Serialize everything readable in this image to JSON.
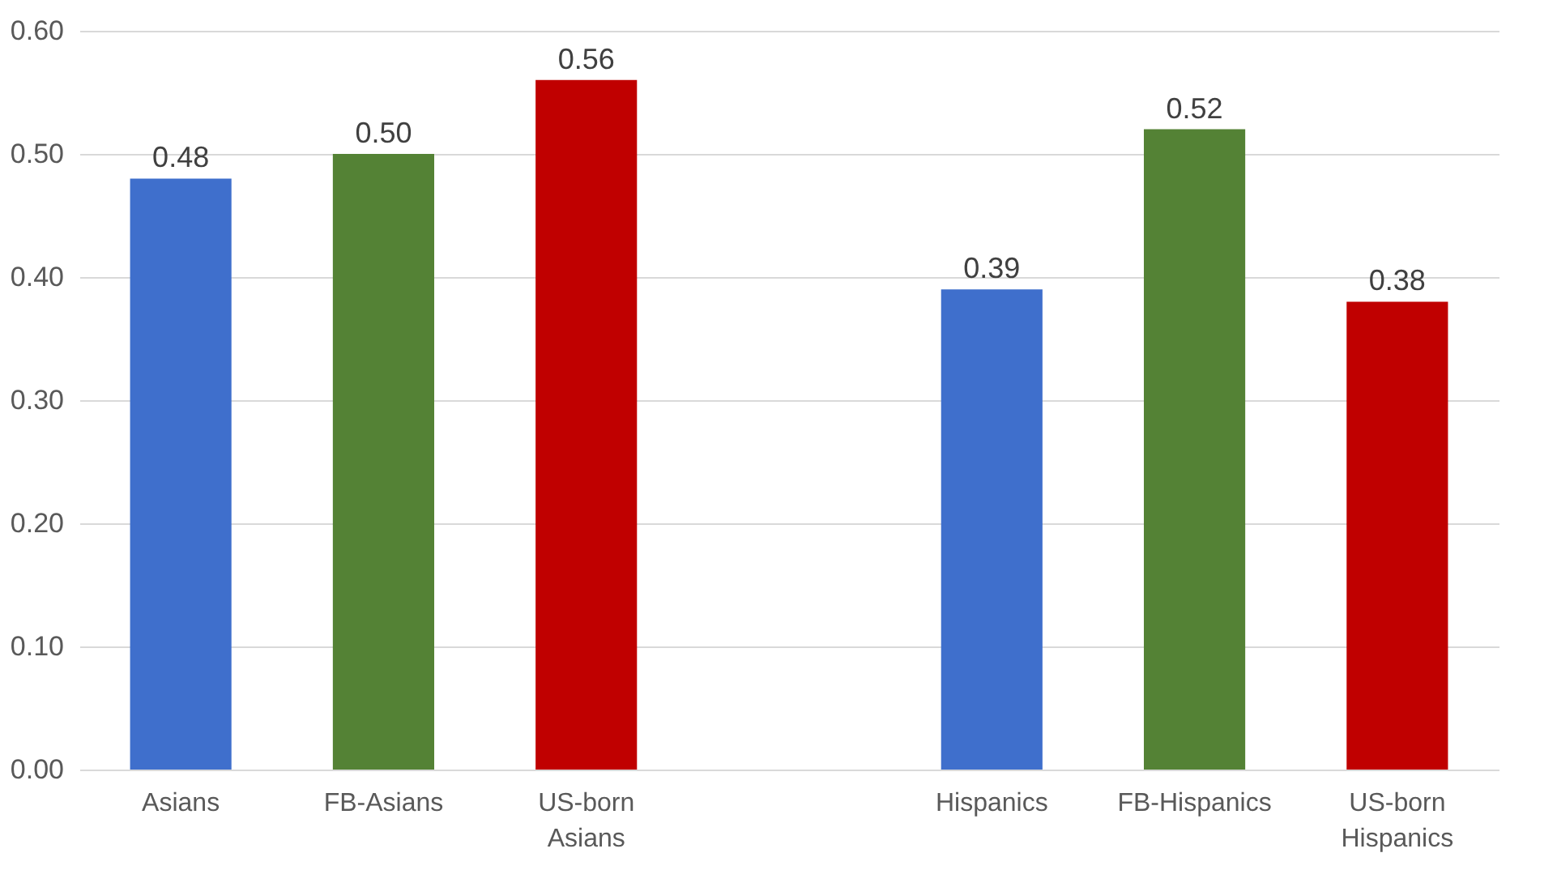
{
  "chart_data": {
    "type": "bar",
    "categories": [
      "Asians",
      "FB-Asians",
      "US-born Asians",
      null,
      "Hispanics",
      "FB-Hispanics",
      "US-born Hispanics"
    ],
    "values": [
      0.48,
      0.5,
      0.56,
      null,
      0.39,
      0.52,
      0.38
    ],
    "colors": [
      "#3f6fcc",
      "#548235",
      "#c00000",
      null,
      "#3f6fcc",
      "#548235",
      "#c00000"
    ],
    "value_labels": [
      "0.48",
      "0.50",
      "0.56",
      null,
      "0.39",
      "0.52",
      "0.38"
    ],
    "ylim": [
      0,
      0.6
    ],
    "yticks": [
      {
        "value": 0,
        "label": "0.00"
      },
      {
        "value": 0.1,
        "label": "0.10"
      },
      {
        "value": 0.2,
        "label": "0.20"
      },
      {
        "value": 0.3,
        "label": "0.30"
      },
      {
        "value": 0.4,
        "label": "0.40"
      },
      {
        "value": 0.5,
        "label": "0.50"
      },
      {
        "value": 0.6,
        "label": "0.60"
      }
    ],
    "grid": "y"
  }
}
